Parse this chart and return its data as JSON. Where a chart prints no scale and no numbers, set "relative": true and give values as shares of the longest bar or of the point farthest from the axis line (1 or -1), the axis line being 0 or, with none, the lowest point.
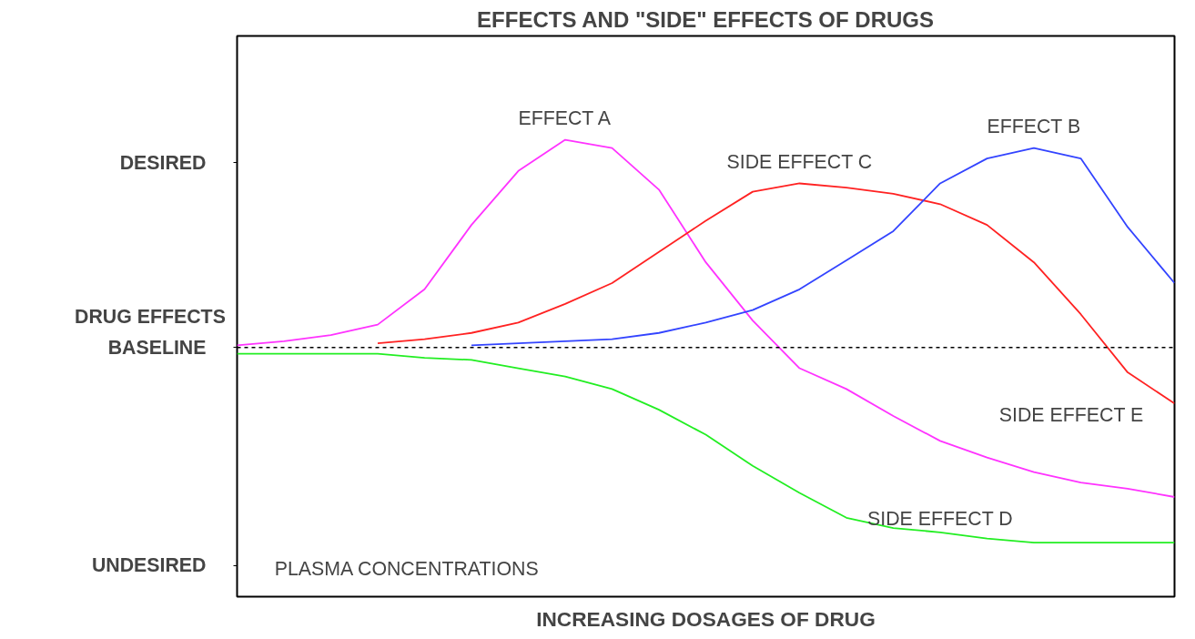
{
  "chart_data": {
    "type": "line",
    "relative": true,
    "title": "EFFECTS AND \"SIDE\" EFFECTS OF DRUGS",
    "xlabel": "INCREASING DOSAGES OF DRUG",
    "ylabel": "DRUG EFFECTS",
    "categories": [
      null,
      null,
      null,
      null,
      null,
      null,
      null,
      null,
      null,
      null,
      null,
      null,
      null,
      null,
      null,
      null,
      null,
      null,
      null,
      null,
      null
    ],
    "series": [
      {
        "name": "EFFECT A",
        "color": "#ff33ff",
        "values": [
          0.01,
          0.03,
          0.06,
          0.11,
          0.28,
          0.59,
          0.85,
          1.0,
          0.96,
          0.76,
          0.41,
          0.13,
          -0.1,
          -0.2,
          -0.33,
          -0.45,
          -0.53,
          -0.6,
          -0.65,
          -0.68,
          -0.72
        ]
      },
      {
        "name": "SIDE EFFECT C",
        "color": "#ff2222",
        "values": [
          null,
          null,
          null,
          0.02,
          0.04,
          0.07,
          0.12,
          0.21,
          0.31,
          0.46,
          0.61,
          0.75,
          0.79,
          0.77,
          0.74,
          0.69,
          0.59,
          0.41,
          0.16,
          -0.12,
          -0.27
        ]
      },
      {
        "name": "EFFECT B",
        "color": "#3344ff",
        "values": [
          null,
          null,
          null,
          null,
          null,
          0.01,
          0.02,
          0.03,
          0.04,
          0.07,
          0.12,
          0.18,
          0.28,
          0.42,
          0.56,
          0.79,
          0.91,
          0.96,
          0.91,
          0.58,
          0.31
        ]
      },
      {
        "name": "SIDE EFFECT D",
        "color": "#22ee22",
        "values": [
          -0.03,
          -0.03,
          -0.03,
          -0.03,
          -0.05,
          -0.06,
          -0.1,
          -0.14,
          -0.2,
          -0.3,
          -0.42,
          -0.57,
          -0.7,
          -0.82,
          -0.87,
          -0.89,
          -0.92,
          -0.94,
          -0.94,
          -0.94,
          -0.94
        ]
      }
    ],
    "ref_lines": [
      {
        "axis": "y",
        "value": 0,
        "label": "BASELINE",
        "color": "#000000",
        "line_style": "dashed"
      }
    ],
    "annotations": [
      "DESIRED",
      "UNDESIRED",
      "PLASMA CONCENTRATIONS",
      "SIDE EFFECT E"
    ],
    "grid": false,
    "marker": "none",
    "line_style": "solid"
  }
}
